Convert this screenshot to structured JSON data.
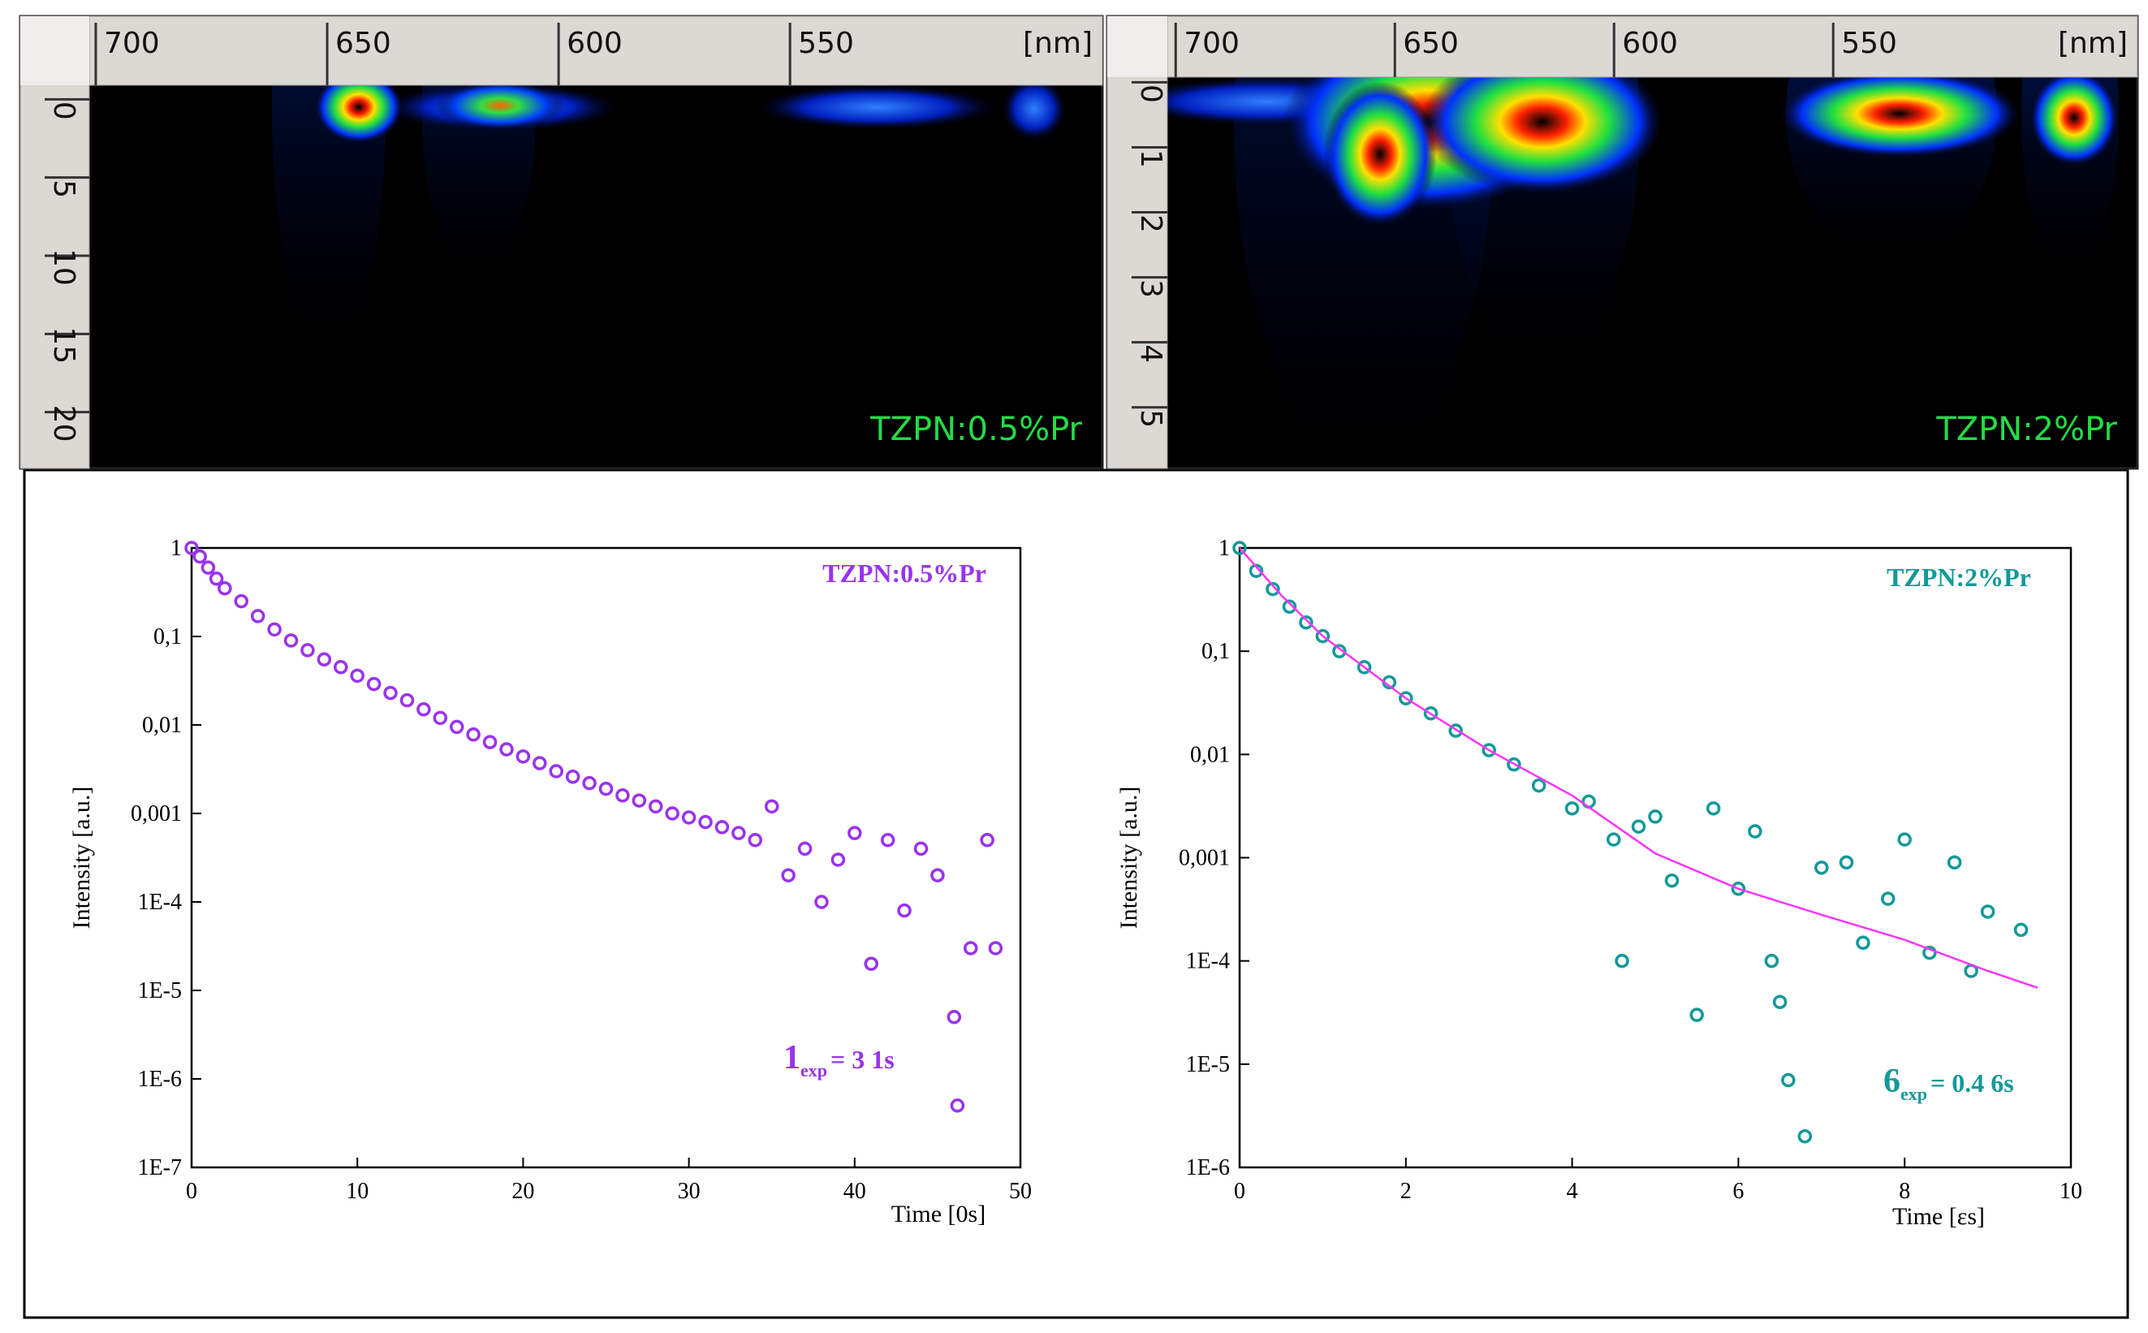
{
  "chart_data": [
    {
      "type": "image",
      "label": "TZPN:0.5%Pr",
      "label_color": "#22dd44",
      "xlim": [
        701.4,
        482.5
      ],
      "xticks": [
        700,
        650,
        600,
        550
      ],
      "x_unit": "[nm]",
      "ylim": [
        -0.9,
        23.6
      ],
      "yticks": [
        0,
        5,
        10,
        15,
        20
      ]
    },
    {
      "type": "image",
      "label": "TZPN:2%Pr",
      "label_color": "#22dd44",
      "xlim": [
        701.9,
        480.6
      ],
      "xticks": [
        700,
        650,
        600,
        550
      ],
      "x_unit": "[nm]",
      "ylim": [
        -0.08,
        5.94
      ],
      "yticks": [
        0,
        1,
        2,
        3,
        4,
        5
      ]
    },
    {
      "type": "scatter",
      "log_y": true,
      "xlim": [
        0,
        50
      ],
      "xticks": [
        0,
        10,
        20,
        30,
        40,
        50
      ],
      "ylim": [
        1e-07,
        1
      ],
      "yticks": [
        1,
        {
          "value": 0.1,
          "label": "0,1"
        },
        {
          "value": 0.01,
          "label": "0,01"
        },
        {
          "value": 0.001,
          "label": "0,001"
        },
        {
          "value": 0.0001,
          "label": "1E-4"
        },
        {
          "value": 1e-05,
          "label": "1E-5"
        },
        {
          "value": 1e-06,
          "label": "1E-6"
        },
        {
          "value": 1e-07,
          "label": "1E-7"
        }
      ],
      "x_label": "Time [0s]",
      "y_label": "Intensity [a.u.]",
      "annotation": {
        "symbol": "1",
        "sub": "exp",
        "text": "= 3 1s"
      },
      "series": [
        {
          "name": "TZPN:0.5%Pr",
          "color": "#9933ee",
          "type": "scatter",
          "x": [
            0,
            0.5,
            1,
            1.5,
            2,
            3,
            4,
            5,
            6,
            7,
            8,
            9,
            10,
            11,
            12,
            13,
            14,
            15,
            16,
            17,
            18,
            19,
            20,
            21,
            22,
            23,
            24,
            25,
            26,
            27,
            28,
            29,
            30,
            31,
            32,
            33,
            34,
            35,
            36,
            37,
            38,
            39,
            40,
            41,
            42,
            43,
            44,
            45,
            46,
            46.2,
            47,
            48,
            48.5
          ],
          "values": [
            1,
            0.8,
            0.6,
            0.45,
            0.35,
            0.25,
            0.17,
            0.12,
            0.09,
            0.07,
            0.055,
            0.045,
            0.036,
            0.029,
            0.023,
            0.019,
            0.015,
            0.012,
            0.0095,
            0.0078,
            0.0064,
            0.0053,
            0.0044,
            0.0037,
            0.003,
            0.0026,
            0.0022,
            0.0019,
            0.0016,
            0.0014,
            0.0012,
            0.001,
            0.0009,
            0.0008,
            0.0007,
            0.0006,
            0.0005,
            0.0012,
            0.0002,
            0.0004,
            0.0001,
            0.0003,
            0.0006,
            2e-05,
            0.0005,
            8e-05,
            0.0004,
            0.0002,
            5e-06,
            5e-07,
            3e-05,
            0.0005,
            3e-05
          ]
        }
      ]
    },
    {
      "type": "scatter",
      "log_y": true,
      "xlim": [
        0,
        10
      ],
      "xticks": [
        0,
        2,
        4,
        6,
        8,
        10
      ],
      "ylim": [
        1e-06,
        1
      ],
      "yticks": [
        1,
        {
          "value": 0.1,
          "label": "0,1"
        },
        {
          "value": 0.01,
          "label": "0,01"
        },
        {
          "value": 0.001,
          "label": "0,001"
        },
        {
          "value": 0.0001,
          "label": "1E-4"
        },
        {
          "value": 1e-05,
          "label": "1E-5"
        },
        {
          "value": 1e-06,
          "label": "1E-6"
        }
      ],
      "x_label": "Time [εs]",
      "y_label": "Intensity [a.u.]",
      "annotation": {
        "symbol": "6",
        "sub": "exp",
        "text": "= 0.4 6s"
      },
      "series": [
        {
          "name": "TZPN:2%Pr",
          "color": "#119999",
          "type": "scatter",
          "x": [
            0,
            0.2,
            0.4,
            0.6,
            0.8,
            1,
            1.2,
            1.5,
            1.8,
            2,
            2.3,
            2.6,
            3,
            3.3,
            3.6,
            4,
            4.2,
            4.5,
            4.6,
            4.8,
            5,
            5.2,
            5.5,
            5.7,
            6,
            6.2,
            6.4,
            6.5,
            6.6,
            6.8,
            7,
            7.3,
            7.5,
            7.8,
            8,
            8.3,
            8.6,
            8.8,
            9,
            9.4
          ],
          "values": [
            1,
            0.6,
            0.4,
            0.27,
            0.19,
            0.14,
            0.1,
            0.07,
            0.05,
            0.035,
            0.025,
            0.017,
            0.011,
            0.008,
            0.005,
            0.003,
            0.0035,
            0.0015,
            0.0001,
            0.002,
            0.0025,
            0.0006,
            3e-05,
            0.003,
            0.0005,
            0.0018,
            0.0001,
            4e-05,
            7e-06,
            2e-06,
            0.0008,
            0.0009,
            0.00015,
            0.0004,
            0.0015,
            0.00012,
            0.0009,
            8e-05,
            0.0003,
            0.0002
          ]
        },
        {
          "type": "line",
          "color": "#ff33ff",
          "x": [
            0,
            0.5,
            1,
            2,
            3,
            4,
            5,
            6,
            7,
            8,
            9,
            9.6
          ],
          "values": [
            1,
            0.35,
            0.14,
            0.035,
            0.011,
            0.004,
            0.0011,
            0.0005,
            0.00028,
            0.00016,
            8e-05,
            5.5e-05
          ]
        }
      ]
    }
  ]
}
